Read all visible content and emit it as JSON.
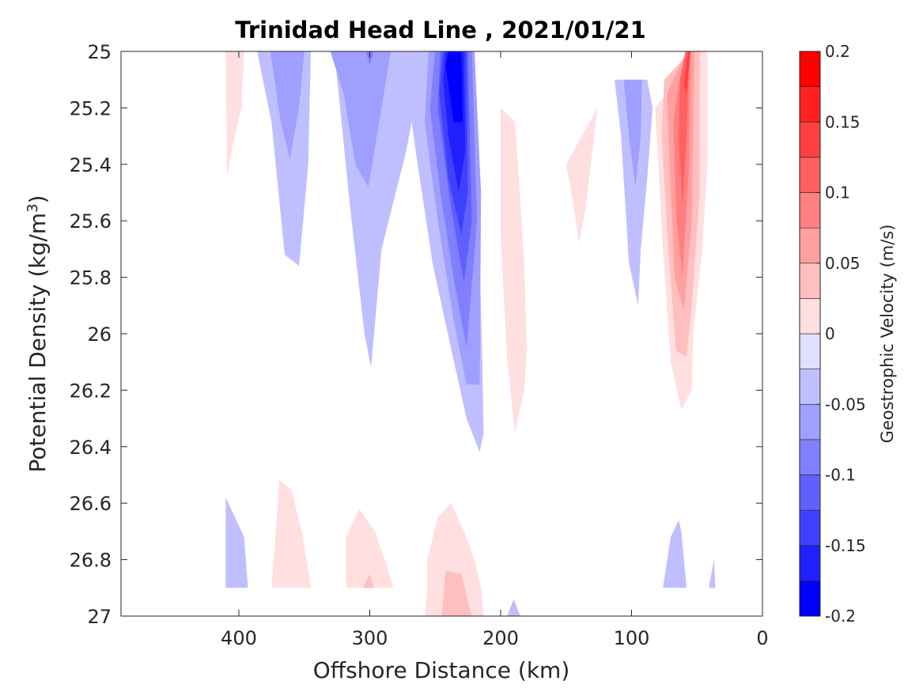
{
  "chart_data": {
    "type": "contour",
    "title": "Trinidad Head Line , 2021/01/21",
    "xlabel": "Offshore Distance (km)",
    "ylabel_main": "Potential Density (kg/m",
    "ylabel_sup": "3",
    "ylabel_close": ")",
    "xlim": [
      490,
      0
    ],
    "ylim": [
      25,
      27
    ],
    "x_reversed": true,
    "y_reversed": true,
    "x_ticks": [
      400,
      300,
      200,
      100,
      0
    ],
    "x_tick_labels": [
      "400",
      "300",
      "200",
      "100",
      "0"
    ],
    "y_ticks": [
      25,
      25.2,
      25.4,
      25.6,
      25.8,
      26,
      26.2,
      26.4,
      26.6,
      26.8,
      27
    ],
    "y_tick_labels": [
      "25",
      "25.2",
      "25.4",
      "25.6",
      "25.8",
      "26",
      "26.2",
      "26.4",
      "26.6",
      "26.8",
      "27"
    ],
    "colorbar": {
      "label": "Geostrophic Velocity (m/s)",
      "limits": [
        -0.2,
        0.2
      ],
      "levels": [
        -0.2,
        -0.175,
        -0.15,
        -0.125,
        -0.1,
        -0.075,
        -0.05,
        -0.025,
        0,
        0.025,
        0.05,
        0.075,
        0.1,
        0.125,
        0.15,
        0.175,
        0.2
      ],
      "tick_values": [
        0.2,
        0.15,
        0.1,
        0.05,
        0,
        -0.05,
        -0.1,
        -0.15,
        -0.2
      ],
      "tick_labels": [
        "0.2",
        "0.15",
        "0.1",
        "0.05",
        "0",
        "-0.05",
        "-0.1",
        "-0.15",
        "-0.2"
      ],
      "colors": [
        "#0000ff",
        "#2020ff",
        "#4040ff",
        "#6060ff",
        "#8080ff",
        "#9f9fff",
        "#bfbfff",
        "#dfdfff",
        "#ffffff",
        "#ffffff",
        "#ffdfdf",
        "#ffbfbf",
        "#ff9f9f",
        "#ff8080",
        "#ff6060",
        "#ff4040",
        "#ff2020",
        "#ff0000"
      ]
    },
    "regions": [
      {
        "name": "jet-220km",
        "level": -0.025,
        "polygon": [
          [
            260,
            25
          ],
          [
            220,
            25
          ],
          [
            214,
            26.1
          ],
          [
            213,
            26.35
          ],
          [
            216,
            26.42
          ],
          [
            226,
            26.3
          ],
          [
            238,
            26.05
          ],
          [
            252,
            25.75
          ],
          [
            265,
            25.35
          ],
          [
            275,
            25
          ]
        ]
      },
      {
        "name": "jet-220km",
        "level": -0.05,
        "polygon": [
          [
            255,
            25
          ],
          [
            220,
            25
          ],
          [
            215,
            25.5
          ],
          [
            216,
            26.18
          ],
          [
            226,
            26.18
          ],
          [
            236,
            25.95
          ],
          [
            248,
            25.6
          ],
          [
            258,
            25.25
          ]
        ]
      },
      {
        "name": "jet-220km",
        "level": -0.075,
        "polygon": [
          [
            250,
            25
          ],
          [
            222,
            25
          ],
          [
            218,
            25.6
          ],
          [
            226,
            26.05
          ],
          [
            236,
            25.8
          ],
          [
            246,
            25.5
          ],
          [
            254,
            25.2
          ]
        ]
      },
      {
        "name": "jet-220km",
        "level": -0.1,
        "polygon": [
          [
            246,
            25
          ],
          [
            225,
            25
          ],
          [
            222,
            25.6
          ],
          [
            228,
            25.82
          ],
          [
            238,
            25.55
          ],
          [
            248,
            25.2
          ]
        ]
      },
      {
        "name": "jet-220km",
        "level": -0.125,
        "polygon": [
          [
            244,
            25
          ],
          [
            226,
            25
          ],
          [
            225,
            25.5
          ],
          [
            230,
            25.65
          ],
          [
            240,
            25.45
          ],
          [
            247,
            25.15
          ]
        ]
      },
      {
        "name": "jet-220km",
        "level": -0.15,
        "polygon": [
          [
            242,
            25
          ],
          [
            228,
            25
          ],
          [
            227,
            25.35
          ],
          [
            232,
            25.5
          ],
          [
            240,
            25.3
          ],
          [
            244,
            25.1
          ]
        ]
      },
      {
        "name": "jet-220km",
        "level": -0.175,
        "polygon": [
          [
            240,
            25
          ],
          [
            230,
            25
          ],
          [
            229,
            25.25
          ],
          [
            236,
            25.25
          ],
          [
            242,
            25.05
          ]
        ]
      },
      {
        "name": "jet-220km",
        "level": -0.2,
        "polygon": [
          [
            239,
            25
          ],
          [
            233,
            25
          ],
          [
            235,
            25.05
          ]
        ]
      },
      {
        "name": "band-300km",
        "level": -0.025,
        "polygon": [
          [
            340,
            25
          ],
          [
            327,
            25
          ],
          [
            315,
            25.55
          ],
          [
            304,
            26.0
          ],
          [
            299,
            26.12
          ],
          [
            291,
            25.7
          ],
          [
            272,
            25.35
          ],
          [
            264,
            25.15
          ],
          [
            264,
            25
          ]
        ]
      },
      {
        "name": "band-300km",
        "level": -0.05,
        "polygon": [
          [
            330,
            25
          ],
          [
            320,
            25.15
          ],
          [
            311,
            25.4
          ],
          [
            301,
            25.48
          ],
          [
            291,
            25.2
          ],
          [
            284,
            25
          ]
        ]
      },
      {
        "name": "band-300km",
        "level": -0.075,
        "polygon": [
          [
            303,
            25
          ],
          [
            297,
            25
          ],
          [
            300,
            25.05
          ]
        ]
      },
      {
        "name": "band-360km",
        "level": -0.025,
        "polygon": [
          [
            386,
            25
          ],
          [
            375,
            25.25
          ],
          [
            365,
            25.72
          ],
          [
            354,
            25.76
          ],
          [
            347,
            25.4
          ],
          [
            345,
            25
          ]
        ]
      },
      {
        "name": "band-360km",
        "level": -0.05,
        "polygon": [
          [
            376,
            25
          ],
          [
            368,
            25.25
          ],
          [
            361,
            25.38
          ],
          [
            354,
            25.2
          ],
          [
            350,
            25
          ]
        ]
      },
      {
        "name": "band-100km",
        "level": -0.025,
        "polygon": [
          [
            113,
            25.1
          ],
          [
            108,
            25.3
          ],
          [
            102,
            25.75
          ],
          [
            95,
            25.9
          ],
          [
            93,
            25.7
          ],
          [
            88,
            25.45
          ],
          [
            84,
            25.2
          ],
          [
            88,
            25.1
          ]
        ]
      },
      {
        "name": "band-100km",
        "level": -0.05,
        "polygon": [
          [
            106,
            25.1
          ],
          [
            102,
            25.3
          ],
          [
            97,
            25.48
          ],
          [
            93,
            25.3
          ],
          [
            92,
            25.1
          ]
        ]
      },
      {
        "name": "deep-50km",
        "level": -0.025,
        "polygon": [
          [
            76,
            26.9
          ],
          [
            70,
            26.72
          ],
          [
            64,
            26.66
          ],
          [
            62,
            26.7
          ],
          [
            58,
            26.9
          ]
        ]
      },
      {
        "name": "deep-400km",
        "level": -0.025,
        "polygon": [
          [
            410,
            26.58
          ],
          [
            396,
            26.72
          ],
          [
            393,
            26.9
          ],
          [
            410,
            26.9
          ]
        ]
      },
      {
        "name": "deep-37km",
        "level": -0.025,
        "polygon": [
          [
            41,
            26.9
          ],
          [
            37,
            26.8
          ],
          [
            36,
            26.9
          ]
        ]
      },
      {
        "name": "deep-190km",
        "level": -0.025,
        "polygon": [
          [
            195,
            27.0
          ],
          [
            190,
            26.94
          ],
          [
            185,
            27.0
          ]
        ]
      },
      {
        "name": "surface-405km",
        "level": 0.025,
        "polygon": [
          [
            410,
            25
          ],
          [
            396,
            25
          ],
          [
            398,
            25.2
          ],
          [
            406,
            25.36
          ],
          [
            409,
            25.45
          ]
        ]
      },
      {
        "name": "band-190km",
        "level": 0.025,
        "polygon": [
          [
            200,
            25.2
          ],
          [
            189,
            25.25
          ],
          [
            182,
            25.75
          ],
          [
            180,
            26.05
          ],
          [
            182,
            26.2
          ],
          [
            189,
            26.35
          ],
          [
            195,
            26.1
          ],
          [
            200,
            25.65
          ]
        ]
      },
      {
        "name": "streak-140km",
        "level": 0.025,
        "polygon": [
          [
            126,
            25.2
          ],
          [
            135,
            25.55
          ],
          [
            140,
            25.68
          ],
          [
            146,
            25.5
          ],
          [
            150,
            25.4
          ]
        ]
      },
      {
        "name": "core-60km",
        "level": 0.025,
        "polygon": [
          [
            48,
            25
          ],
          [
            42,
            25
          ],
          [
            42,
            25.4
          ],
          [
            46,
            25.7
          ],
          [
            53,
            26.0
          ],
          [
            54,
            26.2
          ],
          [
            62,
            26.27
          ],
          [
            70,
            26.1
          ],
          [
            76,
            25.7
          ],
          [
            82,
            25.2
          ]
        ]
      },
      {
        "name": "core-60km",
        "level": 0.05,
        "polygon": [
          [
            55,
            25
          ],
          [
            48,
            25
          ],
          [
            48,
            25.5
          ],
          [
            54,
            25.9
          ],
          [
            58,
            26.08
          ],
          [
            66,
            26.06
          ],
          [
            72,
            25.7
          ],
          [
            77,
            25.3
          ],
          [
            75,
            25.1
          ]
        ]
      },
      {
        "name": "core-60km",
        "level": 0.075,
        "polygon": [
          [
            58,
            25
          ],
          [
            52,
            25
          ],
          [
            54,
            25.6
          ],
          [
            60,
            25.92
          ],
          [
            67,
            25.8
          ],
          [
            70,
            25.5
          ],
          [
            73,
            25.15
          ]
        ]
      },
      {
        "name": "core-60km",
        "level": 0.1,
        "polygon": [
          [
            59,
            25
          ],
          [
            55,
            25
          ],
          [
            56,
            25.4
          ],
          [
            61,
            25.8
          ],
          [
            66,
            25.58
          ],
          [
            68,
            25.25
          ],
          [
            65,
            25.15
          ]
        ]
      },
      {
        "name": "core-60km",
        "level": 0.125,
        "polygon": [
          [
            58,
            25
          ],
          [
            56,
            25
          ],
          [
            58,
            25.3
          ],
          [
            61,
            25.55
          ],
          [
            64,
            25.3
          ],
          [
            63,
            25.1
          ]
        ]
      },
      {
        "name": "core-60km",
        "level": 0.15,
        "polygon": [
          [
            57,
            25
          ],
          [
            55,
            25
          ],
          [
            58,
            25.15
          ],
          [
            60,
            25.12
          ]
        ]
      },
      {
        "name": "deep-355km",
        "level": 0.025,
        "polygon": [
          [
            375,
            26.9
          ],
          [
            369,
            26.52
          ],
          [
            360,
            26.55
          ],
          [
            351,
            26.72
          ],
          [
            345,
            26.9
          ]
        ]
      },
      {
        "name": "deep-300km",
        "level": 0.025,
        "polygon": [
          [
            318,
            26.9
          ],
          [
            318,
            26.72
          ],
          [
            308,
            26.62
          ],
          [
            296,
            26.7
          ],
          [
            287,
            26.82
          ],
          [
            282,
            26.9
          ]
        ]
      },
      {
        "name": "deep-300km",
        "level": 0.05,
        "polygon": [
          [
            305,
            26.9
          ],
          [
            300,
            26.85
          ],
          [
            297,
            26.9
          ]
        ]
      },
      {
        "name": "deep-230km",
        "level": 0.025,
        "polygon": [
          [
            256,
            26.9
          ],
          [
            256,
            26.8
          ],
          [
            248,
            26.65
          ],
          [
            238,
            26.6
          ],
          [
            228,
            26.7
          ],
          [
            220,
            26.8
          ],
          [
            215,
            26.9
          ],
          [
            213,
            27.0
          ],
          [
            258,
            27.0
          ]
        ]
      },
      {
        "name": "deep-230km",
        "level": 0.05,
        "polygon": [
          [
            242,
            26.84
          ],
          [
            230,
            26.85
          ],
          [
            225,
            26.95
          ],
          [
            222,
            27.0
          ],
          [
            245,
            27.0
          ]
        ]
      }
    ]
  }
}
